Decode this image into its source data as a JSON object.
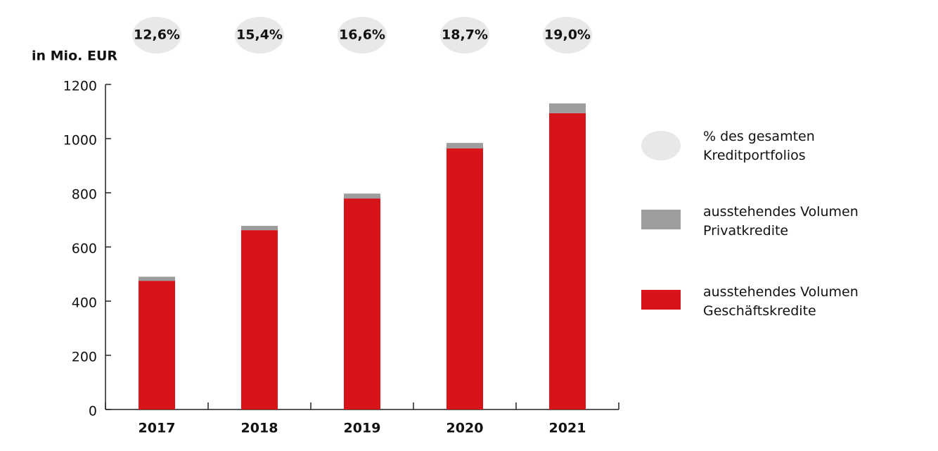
{
  "chart_data": {
    "type": "bar",
    "y_label": "in Mio. EUR",
    "categories": [
      "2017",
      "2018",
      "2019",
      "2020",
      "2021"
    ],
    "stacked": true,
    "ylim": [
      0,
      1200
    ],
    "yticks": [
      0,
      200,
      400,
      600,
      800,
      1000,
      1200
    ],
    "series": [
      {
        "name": "ausstehendes Volumen Geschäftskredite",
        "color": "#d7141a",
        "values": [
          475,
          662,
          779,
          964,
          1094
        ]
      },
      {
        "name": "ausstehendes Volumen Privatkredite",
        "color": "#9d9d9d",
        "values": [
          15,
          16,
          18,
          20,
          36
        ]
      }
    ],
    "share": {
      "name": "% des gesamten Kreditportfolios",
      "color": "#e8e8e8",
      "values": [
        12.6,
        15.4,
        16.6,
        18.7,
        19.0
      ],
      "value_labels": [
        "12,6%",
        "15,4%",
        "16,6%",
        "18,7%",
        "19,0%"
      ]
    }
  }
}
